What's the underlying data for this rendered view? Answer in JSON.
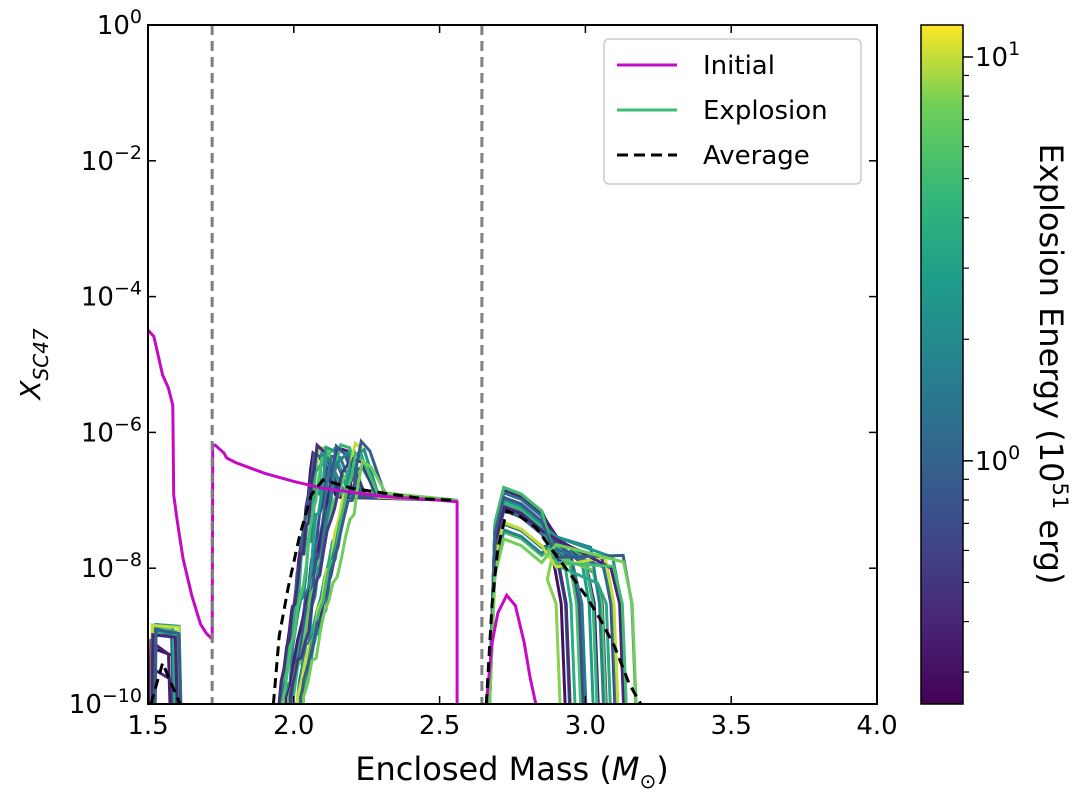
{
  "chart_data": {
    "type": "line",
    "xlabel_main": "Enclosed Mass (",
    "xlabel_symbol": "M",
    "xlabel_sub": "⊙",
    "xlabel_close": ")",
    "ylabel_main": "X",
    "ylabel_sub": "SC47",
    "xlim": [
      1.5,
      4.0
    ],
    "ylim": [
      1e-10,
      1
    ],
    "yscale": "log",
    "x_ticks": [
      {
        "value": 1.5,
        "label": "1.5"
      },
      {
        "value": 2.0,
        "label": "2.0"
      },
      {
        "value": 2.5,
        "label": "2.5"
      },
      {
        "value": 3.0,
        "label": "3.0"
      },
      {
        "value": 3.5,
        "label": "3.5"
      },
      {
        "value": 4.0,
        "label": "4.0"
      }
    ],
    "y_ticks": [
      {
        "exp": -10,
        "base": "10",
        "sup": "−10"
      },
      {
        "exp": -8,
        "base": "10",
        "sup": "−8"
      },
      {
        "exp": -6,
        "base": "10",
        "sup": "−6"
      },
      {
        "exp": -4,
        "base": "10",
        "sup": "−4"
      },
      {
        "exp": -2,
        "base": "10",
        "sup": "−2"
      },
      {
        "exp": 0,
        "base": "10",
        "sup": "0"
      }
    ],
    "vlines": [
      1.72,
      2.645
    ],
    "legend": {
      "placement": "upper right",
      "entries": [
        {
          "label": "Initial",
          "color": "#c40ac4",
          "style": "solid"
        },
        {
          "label": "Explosion",
          "color": "#3dbd78",
          "style": "solid"
        },
        {
          "label": "Average",
          "color": "#000000",
          "style": "dashed"
        }
      ]
    },
    "colorbar": {
      "label_main": "Explosion Energy (10",
      "label_sup": "51",
      "label_end": " erg)",
      "scale": "log",
      "range": [
        0.25,
        12
      ],
      "colormap": "viridis",
      "ticks": [
        {
          "value": 1,
          "base": "10",
          "sup": "0"
        },
        {
          "value": 10,
          "base": "10",
          "sup": "1"
        }
      ]
    },
    "series": [
      {
        "name": "Initial",
        "color": "#c40ac4",
        "x": [
          1.5,
          1.52,
          1.53,
          1.55,
          1.57,
          1.585,
          1.588,
          1.6,
          1.62,
          1.65,
          1.68,
          1.7,
          1.72,
          1.722,
          1.73,
          1.76,
          1.77,
          1.8,
          1.9,
          2.0,
          2.1,
          2.3,
          2.5,
          2.56,
          2.56
        ],
        "y": [
          3.2e-05,
          2.6e-05,
          1.7e-05,
          7e-06,
          4.5e-06,
          2.5e-06,
          1.2e-07,
          5e-08,
          1.4e-08,
          4e-09,
          1.5e-09,
          1.1e-09,
          9e-10,
          6.5e-07,
          6.5e-07,
          5e-07,
          4.2e-07,
          3.6e-07,
          2.5e-07,
          1.9e-07,
          1.5e-07,
          1.15e-07,
          1e-07,
          9.5e-08,
          1e-10
        ]
      },
      {
        "name": "Initial",
        "color": "#c40ac4",
        "x": [
          2.66,
          2.68,
          2.7,
          2.73,
          2.76,
          2.79,
          2.81,
          2.83
        ],
        "y": [
          1e-10,
          8e-10,
          2.2e-09,
          4e-09,
          2.8e-09,
          8e-10,
          2.5e-10,
          1e-10
        ]
      },
      {
        "name": "Average",
        "color": "#000000",
        "x": [
          1.51,
          1.55,
          1.58,
          1.61
        ],
        "y": [
          1e-10,
          4e-10,
          2e-10,
          1e-10
        ]
      },
      {
        "name": "Average",
        "color": "#000000",
        "x": [
          1.93,
          1.95,
          1.98,
          2.02,
          2.06,
          2.1,
          2.2,
          2.35,
          2.45,
          2.55
        ],
        "y": [
          1e-10,
          1e-09,
          5e-09,
          3e-08,
          1.2e-07,
          2e-07,
          1.5e-07,
          1.2e-07,
          1.05e-07,
          1e-07
        ]
      },
      {
        "name": "Average",
        "color": "#000000",
        "x": [
          2.66,
          2.68,
          2.7,
          2.73,
          2.77,
          2.83,
          2.88,
          2.95,
          3.0,
          3.05,
          3.1,
          3.15,
          3.19
        ],
        "y": [
          1e-10,
          3e-09,
          2e-08,
          7e-08,
          6e-08,
          4e-08,
          2e-08,
          8e-09,
          4e-09,
          1.8e-09,
          7e-10,
          2e-10,
          1e-10
        ]
      }
    ]
  }
}
